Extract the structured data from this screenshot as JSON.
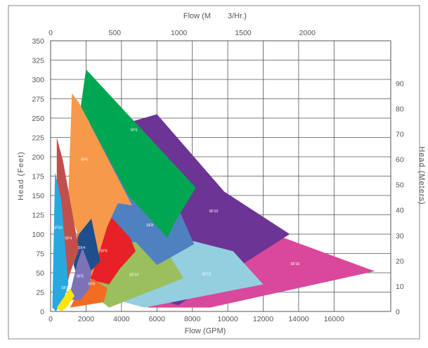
{
  "chart_data": {
    "type": "area",
    "title": "",
    "top_axis": {
      "label_part1": "Flow (M",
      "label_part2": "3/Hr.)",
      "ticks": [
        0,
        500,
        1000,
        1500,
        2000
      ],
      "range": [
        0,
        2650
      ]
    },
    "bottom_axis": {
      "label": "Flow (GPM)",
      "ticks": [
        0,
        2000,
        4000,
        6000,
        8000,
        10000,
        12000,
        14000,
        16000
      ],
      "range": [
        0,
        19200
      ]
    },
    "left_axis": {
      "label": "Head (Feet)",
      "ticks": [
        0,
        25,
        50,
        75,
        100,
        125,
        150,
        175,
        200,
        225,
        250,
        275,
        300,
        325,
        350
      ],
      "range": [
        0,
        350
      ]
    },
    "right_axis": {
      "label": "Head (Meters)",
      "ticks": [
        0,
        10,
        20,
        30,
        40,
        50,
        60,
        70,
        80,
        90
      ],
      "range": [
        0,
        106.7
      ]
    },
    "grid": true,
    "series": [
      {
        "name": "SF16",
        "color": "#d9489a",
        "label_at": [
          13800,
          60
        ],
        "points": [
          [
            5500,
            5
          ],
          [
            9000,
            5
          ],
          [
            18300,
            52
          ],
          [
            12000,
            105
          ],
          [
            7200,
            155
          ]
        ]
      },
      {
        "name": "SF10",
        "color": "#6c3494",
        "label_at": [
          9200,
          128
        ],
        "points": [
          [
            3500,
            35
          ],
          [
            7200,
            8
          ],
          [
            13500,
            100
          ],
          [
            9800,
            155
          ],
          [
            6000,
            255
          ],
          [
            4500,
            245
          ]
        ]
      },
      {
        "name": "SF12",
        "color": "#94cfe0",
        "label_at": [
          8800,
          47
        ],
        "points": [
          [
            3200,
            18
          ],
          [
            5300,
            5
          ],
          [
            12000,
            35
          ],
          [
            10300,
            78
          ],
          [
            6500,
            100
          ]
        ]
      },
      {
        "name": "SF10",
        "color": "#9bbf5c",
        "label_at": [
          4700,
          46
        ],
        "points": [
          [
            1400,
            40
          ],
          [
            3300,
            5
          ],
          [
            7500,
            43
          ],
          [
            6500,
            80
          ],
          [
            4000,
            95
          ]
        ]
      },
      {
        "name": "SF8",
        "color": "#4f81c1",
        "label_at": [
          5600,
          110
        ],
        "points": [
          [
            2000,
            80
          ],
          [
            4800,
            90
          ],
          [
            6000,
            60
          ],
          [
            8100,
            87
          ],
          [
            6700,
            160
          ],
          [
            1600,
            255
          ]
        ]
      },
      {
        "name": "SF6",
        "color": "#00a651",
        "label_at": [
          4700,
          233
        ],
        "points": [
          [
            1700,
            265
          ],
          [
            2000,
            313
          ],
          [
            8200,
            160
          ],
          [
            7000,
            115
          ],
          [
            6600,
            95
          ],
          [
            4400,
            150
          ]
        ]
      },
      {
        "name": "SF6",
        "color": "#e82027",
        "label_at": [
          3000,
          77
        ],
        "points": [
          [
            1500,
            145
          ],
          [
            2300,
            125
          ],
          [
            3500,
            120
          ],
          [
            4500,
            95
          ],
          [
            4800,
            78
          ],
          [
            3900,
            55
          ],
          [
            3300,
            35
          ],
          [
            2400,
            40
          ],
          [
            1500,
            60
          ]
        ]
      },
      {
        "name": "SF5",
        "color": "#f7994a",
        "label_at": [
          1900,
          195
        ],
        "points": [
          [
            1000,
            150
          ],
          [
            1200,
            282
          ],
          [
            1600,
            270
          ],
          [
            4600,
            137
          ],
          [
            3800,
            140
          ],
          [
            3200,
            110
          ],
          [
            2800,
            80
          ],
          [
            2300,
            45
          ],
          [
            1100,
            130
          ]
        ]
      },
      {
        "name": "SF8",
        "color": "#f26c22",
        "label_at": [
          2300,
          34
        ],
        "points": [
          [
            1100,
            5
          ],
          [
            3000,
            12
          ],
          [
            3200,
            30
          ],
          [
            2400,
            42
          ],
          [
            1500,
            35
          ],
          [
            1400,
            18
          ]
        ]
      },
      {
        "name": "SF4",
        "color": "#1f4e8c",
        "label_at": [
          1750,
          81
        ],
        "points": [
          [
            1300,
            60
          ],
          [
            1600,
            100
          ],
          [
            2300,
            120
          ],
          [
            2800,
            65
          ],
          [
            2100,
            48
          ],
          [
            1700,
            30
          ]
        ]
      },
      {
        "name": "SF5",
        "color": "#7c72b8",
        "label_at": [
          1650,
          44
        ],
        "points": [
          [
            1000,
            15
          ],
          [
            1500,
            62
          ],
          [
            1800,
            82
          ],
          [
            2300,
            52
          ],
          [
            2200,
            30
          ],
          [
            1700,
            15
          ]
        ]
      },
      {
        "name": "SF4",
        "color": "#c1504d",
        "label_at": [
          1000,
          93
        ],
        "points": [
          [
            350,
            5
          ],
          [
            350,
            225
          ],
          [
            700,
            195
          ],
          [
            1600,
            80
          ],
          [
            1100,
            50
          ],
          [
            600,
            5
          ]
        ]
      },
      {
        "name": "SF03",
        "color": "#29a8e0",
        "label_at": [
          400,
          107
        ],
        "points": [
          [
            100,
            5
          ],
          [
            250,
            180
          ],
          [
            600,
            145
          ],
          [
            1000,
            35
          ],
          [
            800,
            20
          ],
          [
            300,
            0
          ]
        ]
      },
      {
        "name": "SF3",
        "color": "#ffe600",
        "label_at": [
          800,
          29
        ],
        "points": [
          [
            350,
            5
          ],
          [
            1100,
            30
          ],
          [
            1350,
            20
          ],
          [
            900,
            5
          ],
          [
            600,
            0
          ]
        ]
      }
    ]
  }
}
